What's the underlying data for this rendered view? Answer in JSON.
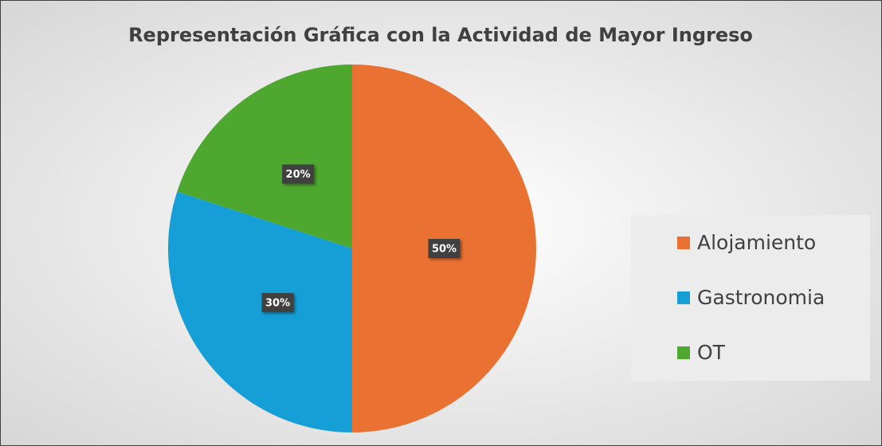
{
  "chart_data": {
    "type": "pie",
    "title": "Representación Gráfica con la Actividad de Mayor Ingreso",
    "categories": [
      "Alojamiento",
      "Gastronomia",
      "OT"
    ],
    "values": [
      50,
      30,
      20
    ],
    "value_labels": [
      "50%",
      "30%",
      "20%"
    ],
    "colors": [
      "#e97132",
      "#159fd6",
      "#4ea72e"
    ],
    "legend": "right"
  }
}
